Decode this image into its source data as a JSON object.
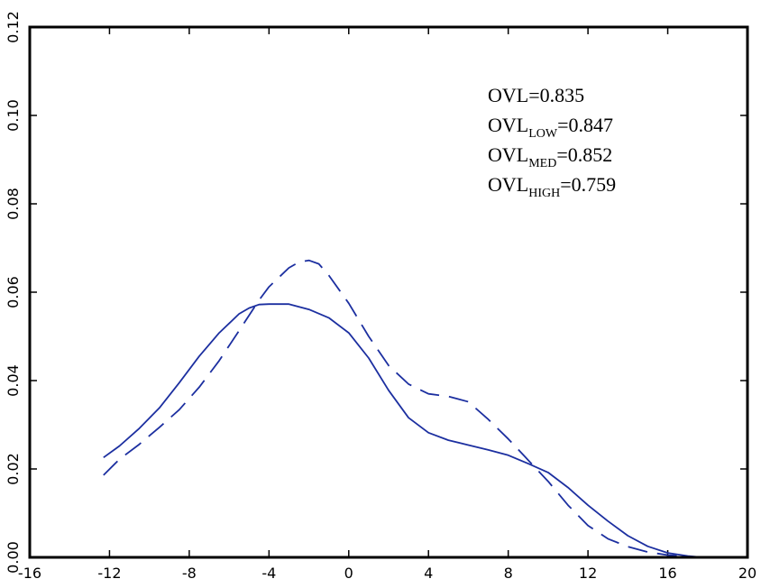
{
  "chart_data": {
    "type": "line",
    "title": "",
    "xlabel": "",
    "ylabel": "",
    "xlim": [
      -16,
      20
    ],
    "ylim": [
      0,
      0.12
    ],
    "x_ticks": [
      -16,
      -12,
      -8,
      -4,
      0,
      4,
      8,
      12,
      16,
      20
    ],
    "x_tick_labels": [
      "-16",
      "-12",
      "-8",
      "-4",
      "0",
      "4",
      "8",
      "12",
      "16",
      "20"
    ],
    "y_ticks": [
      0,
      0.02,
      0.04,
      0.06,
      0.08,
      0.1,
      0.12
    ],
    "y_tick_labels": [
      "0.00",
      "0.02",
      "0.04",
      "0.06",
      "0.08",
      "0.10",
      "0.12"
    ],
    "grid": false,
    "legend": "none",
    "colors": {
      "series": "#1c2fa0",
      "axes": "#000000"
    },
    "series": [
      {
        "style": "solid",
        "x": [
          -12.3,
          -11.5,
          -10.5,
          -9.5,
          -8.5,
          -7.5,
          -6.5,
          -5.5,
          -5,
          -4.5,
          -4,
          -3,
          -2,
          -1,
          0,
          1,
          2,
          3,
          4,
          5,
          6,
          7,
          8,
          9,
          10,
          11,
          12,
          13,
          14,
          15,
          16,
          17,
          17.5
        ],
        "y": [
          0.0226,
          0.0252,
          0.0292,
          0.0338,
          0.0395,
          0.0455,
          0.0508,
          0.0551,
          0.0564,
          0.0572,
          0.0573,
          0.0573,
          0.0561,
          0.0542,
          0.0508,
          0.0451,
          0.0378,
          0.0316,
          0.0282,
          0.0265,
          0.0254,
          0.0243,
          0.0231,
          0.0212,
          0.0192,
          0.0158,
          0.0118,
          0.0082,
          0.0049,
          0.0025,
          0.001,
          0.0003,
          0.0001
        ]
      },
      {
        "style": "dashed",
        "x": [
          -12.3,
          -11.5,
          -10.5,
          -9.5,
          -8.5,
          -7.5,
          -6.5,
          -5.5,
          -4.5,
          -4,
          -3,
          -2.5,
          -2,
          -1.5,
          -1,
          0,
          1,
          2,
          3,
          4,
          5,
          6,
          7,
          8,
          9,
          10,
          11,
          12,
          13,
          14,
          15,
          16,
          17
        ],
        "y": [
          0.0186,
          0.0222,
          0.0256,
          0.0294,
          0.0334,
          0.0385,
          0.0445,
          0.0513,
          0.0582,
          0.0612,
          0.0655,
          0.0668,
          0.0672,
          0.0664,
          0.0638,
          0.0575,
          0.05,
          0.0434,
          0.0392,
          0.037,
          0.0364,
          0.0352,
          0.0312,
          0.0268,
          0.022,
          0.0172,
          0.0118,
          0.0072,
          0.0042,
          0.0024,
          0.0012,
          0.0005,
          0.0002
        ]
      }
    ],
    "annotations": [
      {
        "main": "OVL",
        "sub": "",
        "value": "=0.835"
      },
      {
        "main": "OVL",
        "sub": "LOW",
        "value": "=0.847"
      },
      {
        "main": "OVL",
        "sub": "MED",
        "value": "=0.852"
      },
      {
        "main": "OVL",
        "sub": "HIGH",
        "value": "=0.759"
      }
    ]
  }
}
